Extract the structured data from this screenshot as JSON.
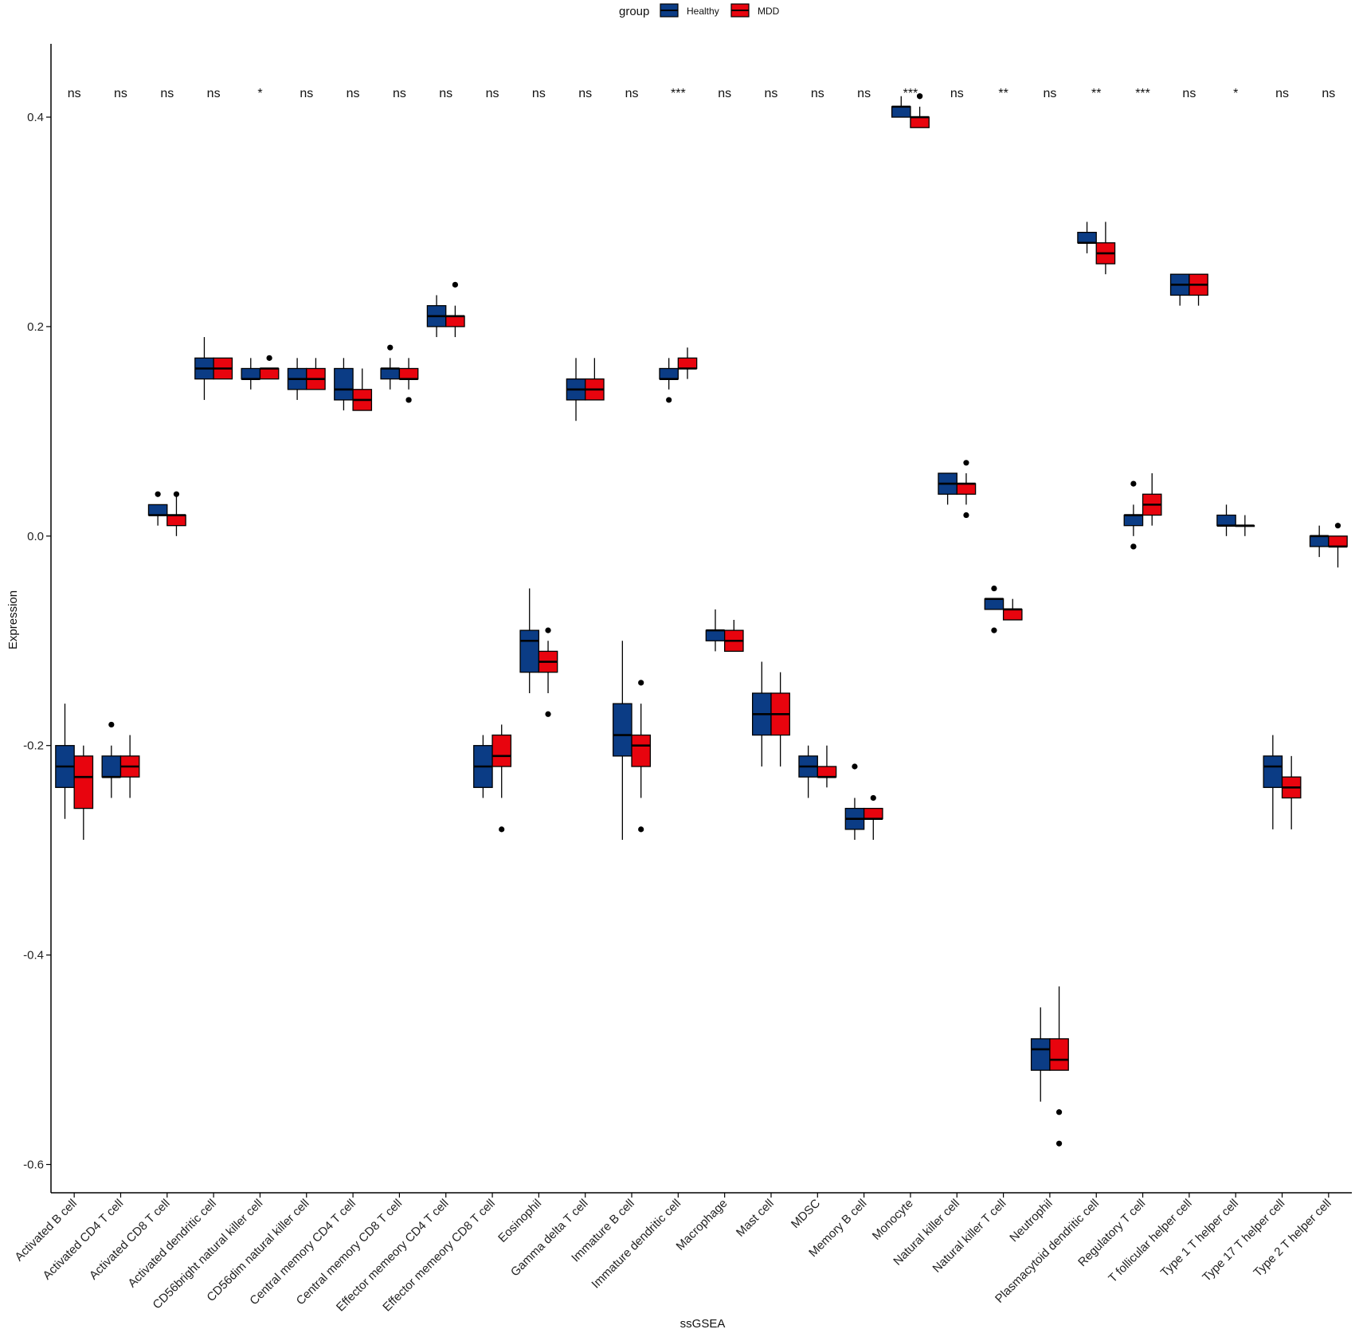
{
  "chart_data": {
    "type": "box",
    "xlabel": "ssGSEA",
    "ylabel": "Expression",
    "ylim": [
      -0.627,
      0.47
    ],
    "yticks": [
      0.4,
      0.2,
      0.0,
      -0.2,
      -0.4,
      -0.6
    ],
    "ytick_labels": [
      "0.4",
      "0.2",
      "0.0",
      "-0.2",
      "-0.4",
      "-0.6"
    ],
    "legend": {
      "title": "group",
      "position": "top",
      "entries": [
        {
          "name": "Healthy",
          "color": "#0B3C85"
        },
        {
          "name": "MDD",
          "color": "#E8040E"
        }
      ]
    },
    "grid": false,
    "categories": [
      "Activated B cell",
      "Activated CD4 T cell",
      "Activated CD8 T cell",
      "Activated dendritic cell",
      "CD56bright natural killer cell",
      "CD56dim natural killer cell",
      "Central memory CD4 T cell",
      "Central memory CD8 T cell",
      "Effector memeory CD4 T cell",
      "Effector memeory CD8 T cell",
      "Eosinophil",
      "Gamma delta T cell",
      "Immature  B cell",
      "Immature dendritic cell",
      "Macrophage",
      "Mast cell",
      "MDSC",
      "Memory B cell",
      "Monocyte",
      "Natural killer cell",
      "Natural killer T cell",
      "Neutrophil",
      "Plasmacytoid dendritic cell",
      "Regulatory T cell",
      "T follicular helper cell",
      "Type 1 T helper cell",
      "Type 17 T helper cell",
      "Type 2 T helper cell"
    ],
    "significance": [
      "ns",
      "ns",
      "ns",
      "ns",
      "*",
      "ns",
      "ns",
      "ns",
      "ns",
      "ns",
      "ns",
      "ns",
      "ns",
      "***",
      "ns",
      "ns",
      "ns",
      "ns",
      "***",
      "ns",
      "**",
      "ns",
      "**",
      "***",
      "ns",
      "*",
      "ns",
      "ns"
    ],
    "series": [
      {
        "name": "Healthy",
        "color": "#0B3C85",
        "boxes": [
          {
            "lo": -0.27,
            "q1": -0.24,
            "med": -0.22,
            "q3": -0.2,
            "hi": -0.16,
            "out": []
          },
          {
            "lo": -0.25,
            "q1": -0.23,
            "med": -0.23,
            "q3": -0.21,
            "hi": -0.2,
            "out": [
              -0.18
            ]
          },
          {
            "lo": 0.01,
            "q1": 0.02,
            "med": 0.02,
            "q3": 0.03,
            "hi": 0.03,
            "out": [
              0.04
            ]
          },
          {
            "lo": 0.13,
            "q1": 0.15,
            "med": 0.16,
            "q3": 0.17,
            "hi": 0.19,
            "out": []
          },
          {
            "lo": 0.14,
            "q1": 0.15,
            "med": 0.15,
            "q3": 0.16,
            "hi": 0.17,
            "out": []
          },
          {
            "lo": 0.13,
            "q1": 0.14,
            "med": 0.15,
            "q3": 0.16,
            "hi": 0.17,
            "out": []
          },
          {
            "lo": 0.12,
            "q1": 0.13,
            "med": 0.14,
            "q3": 0.16,
            "hi": 0.17,
            "out": []
          },
          {
            "lo": 0.14,
            "q1": 0.15,
            "med": 0.16,
            "q3": 0.16,
            "hi": 0.17,
            "out": [
              0.18
            ]
          },
          {
            "lo": 0.19,
            "q1": 0.2,
            "med": 0.21,
            "q3": 0.22,
            "hi": 0.23,
            "out": []
          },
          {
            "lo": -0.25,
            "q1": -0.24,
            "med": -0.22,
            "q3": -0.2,
            "hi": -0.19,
            "out": []
          },
          {
            "lo": -0.15,
            "q1": -0.13,
            "med": -0.1,
            "q3": -0.09,
            "hi": -0.05,
            "out": []
          },
          {
            "lo": 0.11,
            "q1": 0.13,
            "med": 0.14,
            "q3": 0.15,
            "hi": 0.17,
            "out": []
          },
          {
            "lo": -0.29,
            "q1": -0.21,
            "med": -0.19,
            "q3": -0.16,
            "hi": -0.1,
            "out": []
          },
          {
            "lo": 0.14,
            "q1": 0.15,
            "med": 0.15,
            "q3": 0.16,
            "hi": 0.17,
            "out": [
              0.13
            ]
          },
          {
            "lo": -0.11,
            "q1": -0.1,
            "med": -0.09,
            "q3": -0.09,
            "hi": -0.07,
            "out": []
          },
          {
            "lo": -0.22,
            "q1": -0.19,
            "med": -0.17,
            "q3": -0.15,
            "hi": -0.12,
            "out": []
          },
          {
            "lo": -0.25,
            "q1": -0.23,
            "med": -0.22,
            "q3": -0.21,
            "hi": -0.2,
            "out": []
          },
          {
            "lo": -0.29,
            "q1": -0.28,
            "med": -0.27,
            "q3": -0.26,
            "hi": -0.25,
            "out": [
              -0.22
            ]
          },
          {
            "lo": 0.4,
            "q1": 0.4,
            "med": 0.41,
            "q3": 0.41,
            "hi": 0.42,
            "out": []
          },
          {
            "lo": 0.03,
            "q1": 0.04,
            "med": 0.05,
            "q3": 0.06,
            "hi": 0.06,
            "out": []
          },
          {
            "lo": -0.07,
            "q1": -0.07,
            "med": -0.06,
            "q3": -0.06,
            "hi": -0.06,
            "out": [
              -0.05,
              -0.09
            ]
          },
          {
            "lo": -0.54,
            "q1": -0.51,
            "med": -0.49,
            "q3": -0.48,
            "hi": -0.45,
            "out": []
          },
          {
            "lo": 0.27,
            "q1": 0.28,
            "med": 0.28,
            "q3": 0.29,
            "hi": 0.3,
            "out": []
          },
          {
            "lo": 0.0,
            "q1": 0.01,
            "med": 0.02,
            "q3": 0.02,
            "hi": 0.03,
            "out": [
              0.05,
              -0.01,
              -0.01
            ]
          },
          {
            "lo": 0.22,
            "q1": 0.23,
            "med": 0.24,
            "q3": 0.25,
            "hi": 0.25,
            "out": []
          },
          {
            "lo": 0.0,
            "q1": 0.01,
            "med": 0.01,
            "q3": 0.02,
            "hi": 0.03,
            "out": []
          },
          {
            "lo": -0.28,
            "q1": -0.24,
            "med": -0.22,
            "q3": -0.21,
            "hi": -0.19,
            "out": []
          },
          {
            "lo": -0.02,
            "q1": -0.01,
            "med": 0.0,
            "q3": 0.0,
            "hi": 0.01,
            "out": []
          }
        ]
      },
      {
        "name": "MDD",
        "color": "#E8040E",
        "boxes": [
          {
            "lo": -0.29,
            "q1": -0.26,
            "med": -0.23,
            "q3": -0.21,
            "hi": -0.2,
            "out": []
          },
          {
            "lo": -0.25,
            "q1": -0.23,
            "med": -0.22,
            "q3": -0.21,
            "hi": -0.19,
            "out": []
          },
          {
            "lo": 0.0,
            "q1": 0.01,
            "med": 0.02,
            "q3": 0.02,
            "hi": 0.04,
            "out": [
              0.04
            ]
          },
          {
            "lo": 0.15,
            "q1": 0.15,
            "med": 0.16,
            "q3": 0.17,
            "hi": 0.17,
            "out": []
          },
          {
            "lo": 0.15,
            "q1": 0.15,
            "med": 0.16,
            "q3": 0.16,
            "hi": 0.16,
            "out": [
              0.17
            ]
          },
          {
            "lo": 0.14,
            "q1": 0.14,
            "med": 0.15,
            "q3": 0.16,
            "hi": 0.17,
            "out": []
          },
          {
            "lo": 0.12,
            "q1": 0.12,
            "med": 0.13,
            "q3": 0.14,
            "hi": 0.16,
            "out": []
          },
          {
            "lo": 0.14,
            "q1": 0.15,
            "med": 0.15,
            "q3": 0.16,
            "hi": 0.17,
            "out": [
              0.13,
              0.13
            ]
          },
          {
            "lo": 0.19,
            "q1": 0.2,
            "med": 0.21,
            "q3": 0.21,
            "hi": 0.22,
            "out": [
              0.24
            ]
          },
          {
            "lo": -0.25,
            "q1": -0.22,
            "med": -0.21,
            "q3": -0.19,
            "hi": -0.18,
            "out": [
              -0.28
            ]
          },
          {
            "lo": -0.15,
            "q1": -0.13,
            "med": -0.12,
            "q3": -0.11,
            "hi": -0.1,
            "out": [
              -0.09,
              -0.17
            ]
          },
          {
            "lo": 0.13,
            "q1": 0.13,
            "med": 0.14,
            "q3": 0.15,
            "hi": 0.17,
            "out": []
          },
          {
            "lo": -0.25,
            "q1": -0.22,
            "med": -0.2,
            "q3": -0.19,
            "hi": -0.16,
            "out": [
              -0.14,
              -0.28
            ]
          },
          {
            "lo": 0.15,
            "q1": 0.16,
            "med": 0.16,
            "q3": 0.17,
            "hi": 0.18,
            "out": []
          },
          {
            "lo": -0.11,
            "q1": -0.11,
            "med": -0.1,
            "q3": -0.09,
            "hi": -0.08,
            "out": []
          },
          {
            "lo": -0.22,
            "q1": -0.19,
            "med": -0.17,
            "q3": -0.15,
            "hi": -0.13,
            "out": []
          },
          {
            "lo": -0.24,
            "q1": -0.23,
            "med": -0.23,
            "q3": -0.22,
            "hi": -0.2,
            "out": []
          },
          {
            "lo": -0.29,
            "q1": -0.27,
            "med": -0.27,
            "q3": -0.26,
            "hi": -0.26,
            "out": [
              -0.25
            ]
          },
          {
            "lo": 0.39,
            "q1": 0.39,
            "med": 0.4,
            "q3": 0.4,
            "hi": 0.41,
            "out": [
              0.42,
              0.42
            ]
          },
          {
            "lo": 0.03,
            "q1": 0.04,
            "med": 0.05,
            "q3": 0.05,
            "hi": 0.06,
            "out": [
              0.07,
              0.02
            ]
          },
          {
            "lo": -0.08,
            "q1": -0.08,
            "med": -0.07,
            "q3": -0.07,
            "hi": -0.06,
            "out": []
          },
          {
            "lo": -0.51,
            "q1": -0.51,
            "med": -0.5,
            "q3": -0.48,
            "hi": -0.43,
            "out": [
              -0.55,
              -0.58
            ]
          },
          {
            "lo": 0.25,
            "q1": 0.26,
            "med": 0.27,
            "q3": 0.28,
            "hi": 0.3,
            "out": []
          },
          {
            "lo": 0.01,
            "q1": 0.02,
            "med": 0.03,
            "q3": 0.04,
            "hi": 0.06,
            "out": []
          },
          {
            "lo": 0.22,
            "q1": 0.23,
            "med": 0.24,
            "q3": 0.25,
            "hi": 0.25,
            "out": []
          },
          {
            "lo": 0.0,
            "q1": 0.01,
            "med": 0.01,
            "q3": 0.01,
            "hi": 0.02,
            "out": []
          },
          {
            "lo": -0.28,
            "q1": -0.25,
            "med": -0.24,
            "q3": -0.23,
            "hi": -0.21,
            "out": []
          },
          {
            "lo": -0.03,
            "q1": -0.01,
            "med": -0.01,
            "q3": 0.0,
            "hi": 0.0,
            "out": [
              0.01
            ]
          }
        ]
      }
    ]
  }
}
